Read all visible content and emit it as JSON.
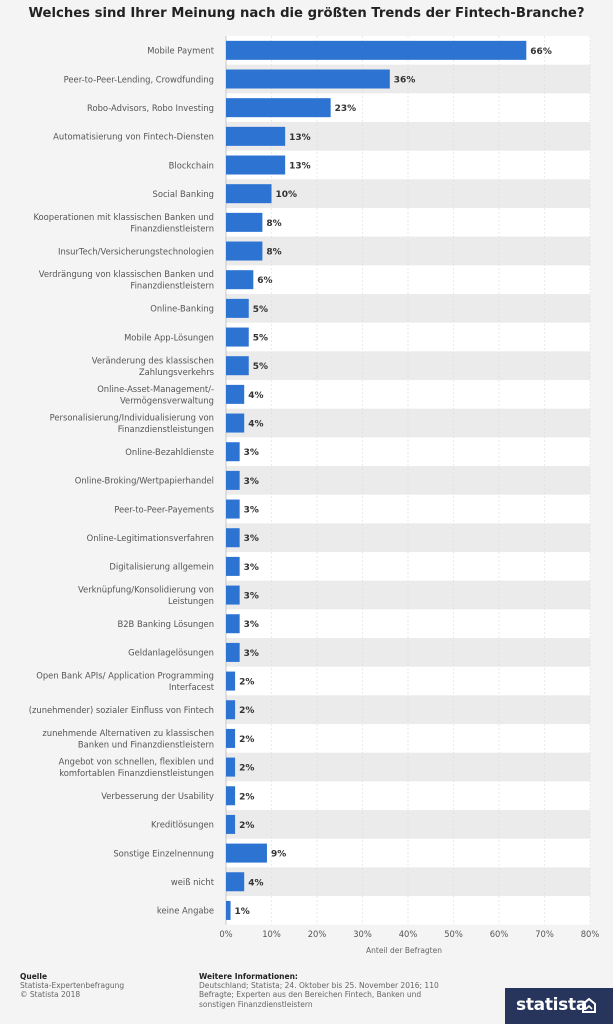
{
  "title": "Welches sind Ihrer Meinung nach die größten Trends der Fintech-Branche?",
  "chart_data": {
    "type": "bar",
    "orientation": "horizontal",
    "title": "Welches sind Ihrer Meinung nach die größten Trends der Fintech-Branche?",
    "xlabel": "Anteil der Befragten",
    "ylabel": "",
    "xlim": [
      0,
      80
    ],
    "x_ticks": [
      "0%",
      "10%",
      "20%",
      "30%",
      "40%",
      "50%",
      "60%",
      "70%",
      "80%"
    ],
    "unit": "%",
    "bar_color": "#2c73d2",
    "categories": [
      "Mobile Payment",
      "Peer-to-Peer-Lending, Crowdfunding",
      "Robo-Advisors, Robo Investing",
      "Automatisierung von Fintech-Diensten",
      "Blockchain",
      "Social Banking",
      "Kooperationen mit klassischen Banken und Finanzdienstleistern",
      "InsurTech/Versicherungstechnologien",
      "Verdrängung von klassischen Banken und Finanzdienstleistern",
      "Online-Banking",
      "Mobile App-Lösungen",
      "Veränderung des klassischen Zahlungsverkehrs",
      "Online-Asset-Management/-Vermögensverwaltung",
      "Personalisierung/Individualisierung von Finanzdienstleistungen",
      "Online-Bezahldienste",
      "Online-Broking/Wertpapierhandel",
      "Peer-to-Peer-Payements",
      "Online-Legitimationsverfahren",
      "Digitalisierung allgemein",
      "Verknüpfung/Konsolidierung von Leistungen",
      "B2B Banking Lösungen",
      "Geldanlagelösungen",
      "Open Bank APIs/ Application Programming Interfacest",
      "(zunehmender) sozialer Einfluss von Fintech",
      "zunehmende Alternativen zu klassischen Banken und Finanzdienstleistern",
      "Angebot von schnellen, flexiblen und komfortablen Finanzdienstleistungen",
      "Verbesserung der Usability",
      "Kreditlösungen",
      "Sonstige Einzelnennung",
      "weiß nicht",
      "keine Angabe"
    ],
    "category_lines": [
      [
        "Mobile Payment"
      ],
      [
        "Peer-to-Peer-Lending, Crowdfunding"
      ],
      [
        "Robo-Advisors, Robo Investing"
      ],
      [
        "Automatisierung von Fintech-Diensten"
      ],
      [
        "Blockchain"
      ],
      [
        "Social Banking"
      ],
      [
        "Kooperationen mit klassischen Banken und",
        "Finanzdienstleistern"
      ],
      [
        "InsurTech/Versicherungstechnologien"
      ],
      [
        "Verdrängung von klassischen Banken und",
        "Finanzdienstleistern"
      ],
      [
        "Online-Banking"
      ],
      [
        "Mobile App-Lösungen"
      ],
      [
        "Veränderung des klassischen",
        "Zahlungsverkehrs"
      ],
      [
        "Online-Asset-Management/-",
        "Vermögensverwaltung"
      ],
      [
        "Personalisierung/Individualisierung von",
        "Finanzdienstleistungen"
      ],
      [
        "Online-Bezahldienste"
      ],
      [
        "Online-Broking/Wertpapierhandel"
      ],
      [
        "Peer-to-Peer-Payements"
      ],
      [
        "Online-Legitimationsverfahren"
      ],
      [
        "Digitalisierung allgemein"
      ],
      [
        "Verknüpfung/Konsolidierung von",
        "Leistungen"
      ],
      [
        "B2B Banking Lösungen"
      ],
      [
        "Geldanlagelösungen"
      ],
      [
        "Open Bank APIs/ Application Programming",
        "Interfacest"
      ],
      [
        "(zunehmender) sozialer Einfluss von Fintech"
      ],
      [
        "zunehmende Alternativen zu klassischen",
        "Banken und Finanzdienstleistern"
      ],
      [
        "Angebot von schnellen, flexiblen und",
        "komfortablen Finanzdienstleistungen"
      ],
      [
        "Verbesserung der Usability"
      ],
      [
        "Kreditlösungen"
      ],
      [
        "Sonstige Einzelnennung"
      ],
      [
        "weiß nicht"
      ],
      [
        "keine Angabe"
      ]
    ],
    "values": [
      66,
      36,
      23,
      13,
      13,
      10,
      8,
      8,
      6,
      5,
      5,
      5,
      4,
      4,
      3,
      3,
      3,
      3,
      3,
      3,
      3,
      3,
      2,
      2,
      2,
      2,
      2,
      2,
      9,
      4,
      1
    ],
    "data_labels": [
      "66%",
      "36%",
      "23%",
      "13%",
      "13%",
      "10%",
      "8%",
      "8%",
      "6%",
      "5%",
      "5%",
      "5%",
      "4%",
      "4%",
      "3%",
      "3%",
      "3%",
      "3%",
      "3%",
      "3%",
      "3%",
      "3%",
      "2%",
      "2%",
      "2%",
      "2%",
      "2%",
      "2%",
      "9%",
      "4%",
      "1%"
    ],
    "grid": true,
    "legend": "none"
  },
  "footer": {
    "source_heading": "Quelle",
    "source_lines": [
      "Statista-Expertenbefragung",
      "© Statista 2018"
    ],
    "info_heading": "Weitere Informationen:",
    "info_lines": [
      "Deutschland; Statista; 24. Oktober bis 25. November 2016; 110",
      "Befragte; Experten aus den Bereichen Fintech, Banken und",
      "sonstigen Finanzdienstleistern"
    ],
    "logo_text": "statista"
  }
}
